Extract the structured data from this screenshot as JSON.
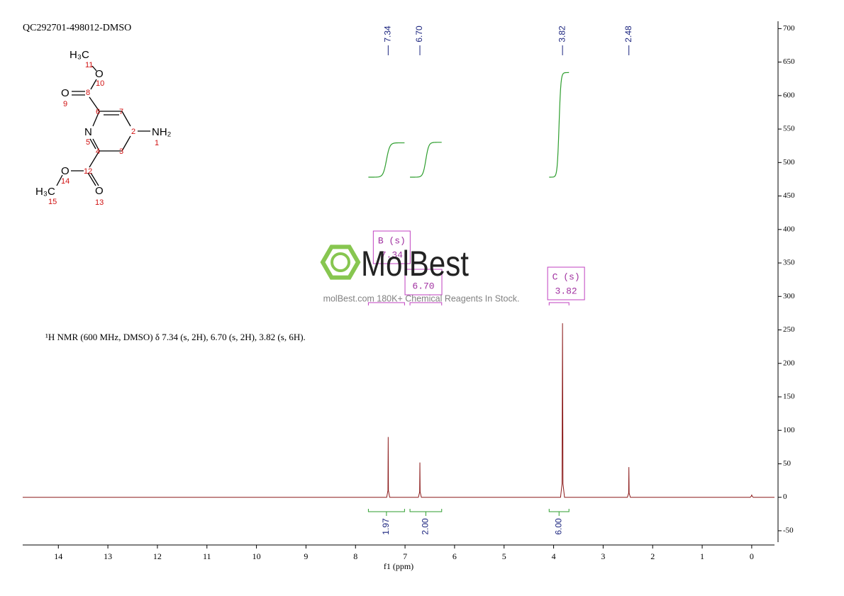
{
  "header": "QC292701-498012-DMSO",
  "description": "¹H NMR (600 MHz, DMSO) δ 7.34 (s, 2H), 6.70 (s, 2H), 3.82 (s, 6H).",
  "watermark": {
    "name": "MolBest",
    "tagline": "molBest.com 180K+ Chemical Reagents In Stock."
  },
  "structure": {
    "atoms": [
      "H₃C",
      "O",
      "O",
      "N",
      "NH₂",
      "O",
      "O",
      "H₃C"
    ],
    "numbers": [
      "11",
      "10",
      "8",
      "9",
      "6",
      "7",
      "2",
      "1",
      "5",
      "4",
      "3",
      "12",
      "14",
      "13",
      "15"
    ]
  },
  "chart_data": {
    "type": "line",
    "x_label": "f1 (ppm)",
    "color": "#8b1a1a",
    "xlim": [
      14.72,
      -0.46
    ],
    "xticks": [
      14,
      13,
      12,
      11,
      10,
      9,
      8,
      7,
      6,
      5,
      4,
      3,
      2,
      1,
      0
    ],
    "ylim": [
      -67,
      711
    ],
    "yticks": [
      700,
      650,
      600,
      550,
      500,
      450,
      400,
      350,
      300,
      250,
      200,
      150,
      100,
      50,
      0,
      -50
    ],
    "x": [
      14.72,
      7.74,
      7.37,
      7.345,
      7.34,
      7.335,
      7.31,
      6.73,
      6.705,
      6.7,
      6.695,
      6.67,
      3.86,
      3.83,
      3.82,
      3.81,
      3.78,
      2.51,
      2.485,
      2.48,
      2.475,
      2.45,
      0.03,
      0.005,
      0,
      -0.005,
      -0.03,
      -0.46
    ],
    "values": [
      0,
      0,
      0,
      10,
      90,
      10,
      0,
      0,
      8,
      52,
      8,
      0,
      0,
      20,
      260,
      20,
      0,
      0,
      6,
      45,
      6,
      0,
      0,
      2,
      4,
      2,
      0,
      0
    ],
    "peak_labels": {
      "values": [
        7.34,
        6.7,
        3.82,
        2.48
      ],
      "value_labels": [
        "7.34",
        "6.70",
        "3.82",
        "2.48"
      ]
    },
    "integrals": {
      "values": [
        1.97,
        2,
        6
      ],
      "value_labels": [
        "1.97",
        "2.00",
        "6.00"
      ],
      "ranges": [
        [
          7.74,
          7.01
        ],
        [
          6.9,
          6.26
        ],
        [
          4.09,
          3.69
        ]
      ]
    },
    "multiplets": [
      {
        "name": "B (s)",
        "shift": 7.34,
        "label": "7.34",
        "range": [
          7.74,
          7.01
        ]
      },
      {
        "shift": 6.7,
        "label": "6.70",
        "range": [
          6.9,
          6.26
        ]
      },
      {
        "name": "C (s)",
        "shift": 3.82,
        "label": "3.82",
        "range": [
          4.09,
          3.69
        ]
      }
    ]
  }
}
